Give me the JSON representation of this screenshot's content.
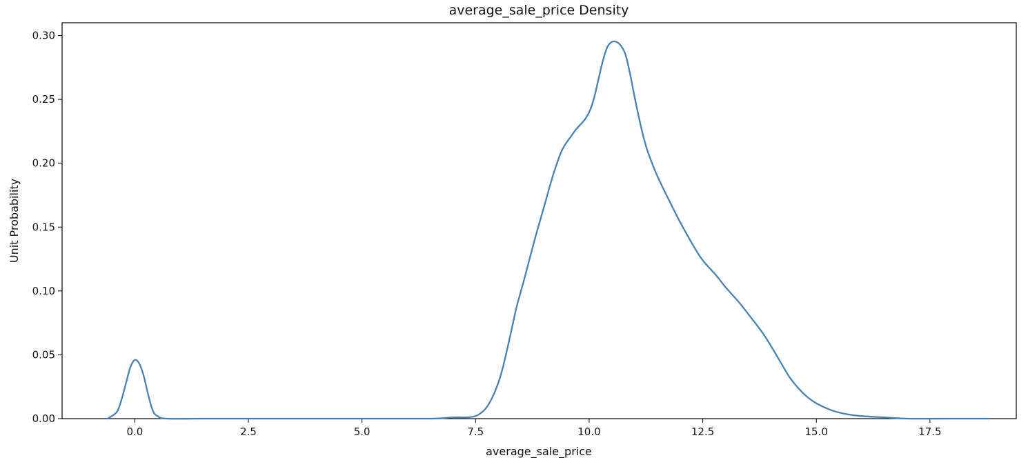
{
  "chart_data": {
    "type": "line",
    "title": "average_sale_price Density",
    "xlabel": "average_sale_price",
    "ylabel": "Unit Probability",
    "xlim": [
      -1.6,
      19.4
    ],
    "ylim": [
      0,
      0.31
    ],
    "xticks": [
      0.0,
      2.5,
      5.0,
      7.5,
      10.0,
      12.5,
      15.0,
      17.5
    ],
    "xtick_labels": [
      "0.0",
      "2.5",
      "5.0",
      "7.5",
      "10.0",
      "12.5",
      "15.0",
      "17.5"
    ],
    "yticks": [
      0.0,
      0.05,
      0.1,
      0.15,
      0.2,
      0.25,
      0.3
    ],
    "ytick_labels": [
      "0.00",
      "0.05",
      "0.10",
      "0.15",
      "0.20",
      "0.25",
      "0.30"
    ],
    "grid": false,
    "line_color": "#4682b4",
    "series": [
      {
        "x": [
          -0.6,
          -0.4,
          -0.3,
          -0.2,
          -0.1,
          0.0,
          0.1,
          0.2,
          0.3,
          0.4,
          0.5,
          0.7,
          1.5,
          3.0,
          5.0,
          6.5,
          7.0,
          7.3,
          7.5,
          7.6,
          7.7,
          7.8,
          7.9,
          8.0,
          8.1,
          8.2,
          8.3,
          8.4,
          8.5,
          8.6,
          8.8,
          9.0,
          9.2,
          9.4,
          9.6,
          9.7,
          9.8,
          9.9,
          10.0,
          10.1,
          10.2,
          10.3,
          10.4,
          10.5,
          10.6,
          10.7,
          10.8,
          10.9,
          11.0,
          11.1,
          11.2,
          11.3,
          11.5,
          11.8,
          12.0,
          12.3,
          12.5,
          12.8,
          13.0,
          13.3,
          13.5,
          13.8,
          14.0,
          14.2,
          14.4,
          14.6,
          14.8,
          15.0,
          15.3,
          15.6,
          16.0,
          16.5,
          17.0,
          18.0,
          18.8
        ],
        "y": [
          0.0,
          0.005,
          0.014,
          0.027,
          0.04,
          0.046,
          0.043,
          0.033,
          0.018,
          0.006,
          0.002,
          0.0,
          0.0,
          0.0,
          0.0,
          0.0,
          0.001,
          0.001,
          0.002,
          0.004,
          0.007,
          0.012,
          0.019,
          0.028,
          0.04,
          0.055,
          0.071,
          0.087,
          0.1,
          0.113,
          0.14,
          0.165,
          0.19,
          0.21,
          0.221,
          0.226,
          0.23,
          0.234,
          0.24,
          0.25,
          0.265,
          0.28,
          0.291,
          0.295,
          0.295,
          0.292,
          0.285,
          0.27,
          0.252,
          0.235,
          0.22,
          0.208,
          0.19,
          0.168,
          0.154,
          0.135,
          0.124,
          0.112,
          0.103,
          0.091,
          0.082,
          0.068,
          0.057,
          0.045,
          0.033,
          0.024,
          0.017,
          0.012,
          0.007,
          0.004,
          0.002,
          0.001,
          0.0,
          0.0,
          0.0
        ]
      }
    ]
  }
}
